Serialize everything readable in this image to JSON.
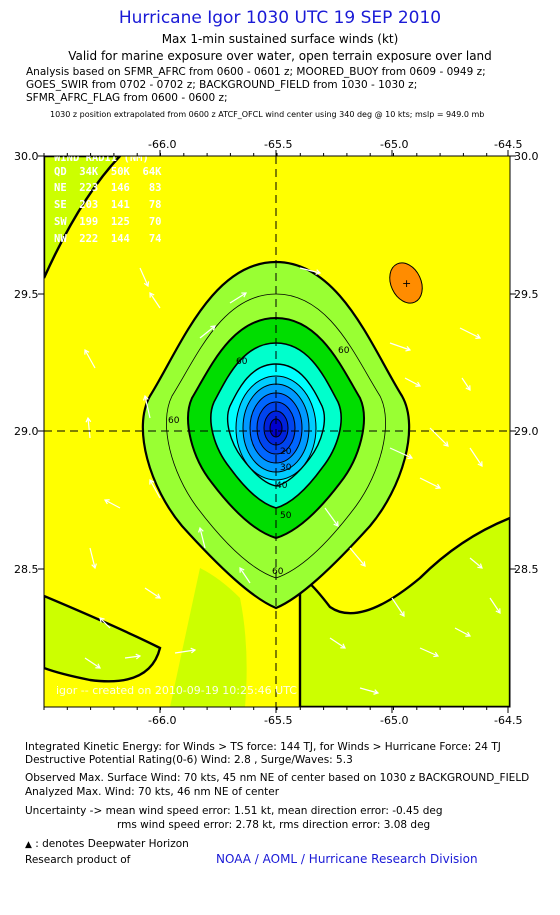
{
  "header": {
    "title": "Hurricane Igor 1030 UTC 19 SEP 2010",
    "subtitle": "Max 1-min sustained surface winds (kt)",
    "valid": "Valid for marine exposure over water, open terrain exposure over land",
    "analysis_lines": [
      "Analysis based on SFMR_AFRC from 0600 - 0601 z; MOORED_BUOY from 0609 - 0949 z;",
      "GOES_SWIR from 0702 - 0702 z; BACKGROUND_FIELD from 1030 - 1030 z;",
      "SFMR_AFRC_FLAG from 0600 - 0600 z;"
    ],
    "extrapolation": "1030 z position extrapolated from 0600 z ATCF_OFCL wind center using 340 deg @ 10 kts; mslp = 949.0 mb"
  },
  "chart_data": {
    "type": "contour",
    "x_ticks": [
      "-66.0",
      "-65.5",
      "-65.0",
      "-64.5"
    ],
    "y_ticks": [
      "30.0",
      "29.5",
      "29.0",
      "28.5"
    ],
    "xlim": [
      -66.5,
      -64.5
    ],
    "ylim": [
      28.0,
      30.0
    ],
    "center": {
      "lon": -65.5,
      "lat": 29.0
    },
    "contour_labels": [
      "60",
      "60",
      "60",
      "60",
      "50",
      "40",
      "30",
      "20"
    ],
    "wind_radii": {
      "title": "WIND RADII (NM)",
      "header": "QD  34K  50K  64K",
      "rows": [
        "NE  223  146   83",
        "SE  203  141   78",
        "SW  199  125   70",
        "NW  222  144   74"
      ]
    },
    "watermark": "igor -- created on 2010-09-19 10:25:46 UTC",
    "colors": {
      "background": "#ffff00",
      "outer_region": "#ccff00",
      "band_60": "#99ff33",
      "band_50": "#00dd00",
      "band_40": "#00ffcc",
      "band_30": "#00ffff",
      "core": "#0000cc",
      "isolated_spot": "#ff8c00"
    }
  },
  "footer": {
    "ike": "Integrated Kinetic Energy:  for Winds > TS force: 144 TJ,  for Winds > Hurricane Force: 24 TJ",
    "dpr": "Destructive Potential Rating(0-6)   Wind: 2.8 , Surge/Waves: 5.3",
    "observed": "Observed Max. Surface Wind: 70 kts, 45 nm NE of center based on 1030 z BACKGROUND_FIELD",
    "analyzed": "Analyzed Max. Wind: 70 kts, 46 nm NE of center",
    "uncertainty1": "Uncertainty -> mean wind speed error: 1.51 kt,   mean direction error:  -0.45 deg",
    "uncertainty2": "rms wind speed error: 2.78 kt,   rms direction error: 3.08 deg",
    "deepwater": ": denotes Deepwater Horizon",
    "research": "Research product of",
    "organization": "NOAA / AOML / Hurricane Research Division"
  }
}
